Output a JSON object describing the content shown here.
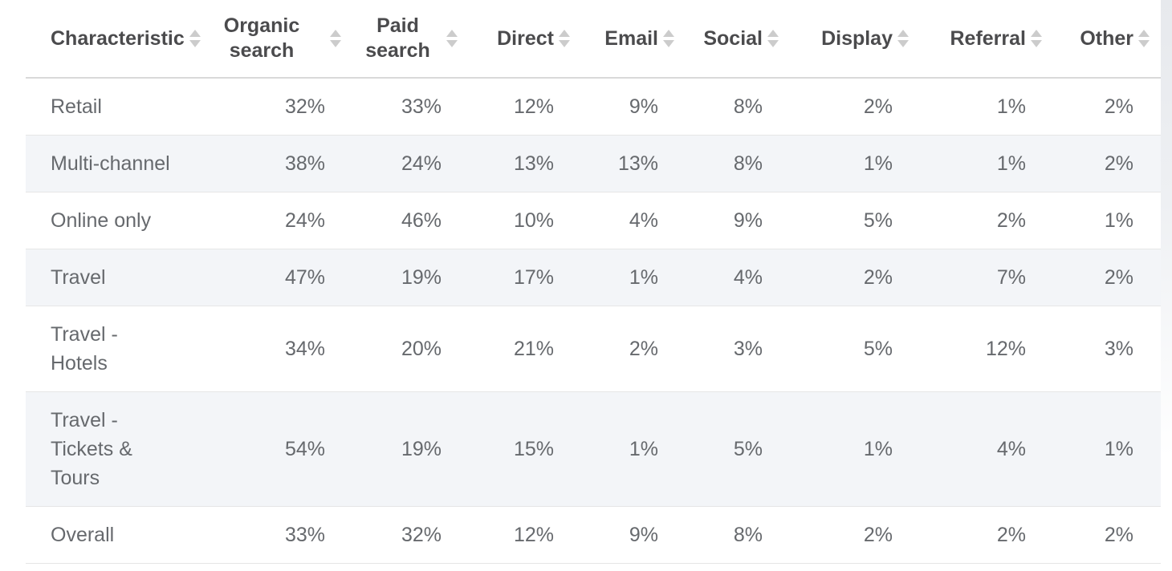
{
  "chart_data": {
    "type": "table",
    "columns": [
      "Characteristic",
      "Organic search",
      "Paid search",
      "Direct",
      "Email",
      "Social",
      "Display",
      "Referral",
      "Other"
    ],
    "rows": [
      [
        "Retail",
        "32%",
        "33%",
        "12%",
        "9%",
        "8%",
        "2%",
        "1%",
        "2%"
      ],
      [
        "Multi-channel",
        "38%",
        "24%",
        "13%",
        "13%",
        "8%",
        "1%",
        "1%",
        "2%"
      ],
      [
        "Online only",
        "24%",
        "46%",
        "10%",
        "4%",
        "9%",
        "5%",
        "2%",
        "1%"
      ],
      [
        "Travel",
        "47%",
        "19%",
        "17%",
        "1%",
        "4%",
        "2%",
        "7%",
        "2%"
      ],
      [
        "Travel - Hotels",
        "34%",
        "20%",
        "21%",
        "2%",
        "3%",
        "5%",
        "12%",
        "3%"
      ],
      [
        "Travel - Tickets & Tours",
        "54%",
        "19%",
        "15%",
        "1%",
        "5%",
        "1%",
        "4%",
        "1%"
      ],
      [
        "Overall",
        "33%",
        "32%",
        "12%",
        "9%",
        "8%",
        "2%",
        "2%",
        "2%"
      ]
    ],
    "layout": {
      "sortable_columns": true,
      "zebra_striping": "even data rows shaded",
      "value_alignment": "right",
      "first_column_alignment": "left"
    }
  },
  "ui": {
    "sort_icon": "up-down-arrows",
    "colors": {
      "stripe": "#f3f5f8",
      "row_border": "#e6e6e6",
      "header_border": "#d9d9d9",
      "header_text": "#4b4b4d",
      "cell_text": "#66696d",
      "sort_arrow": "#cccccc"
    }
  }
}
